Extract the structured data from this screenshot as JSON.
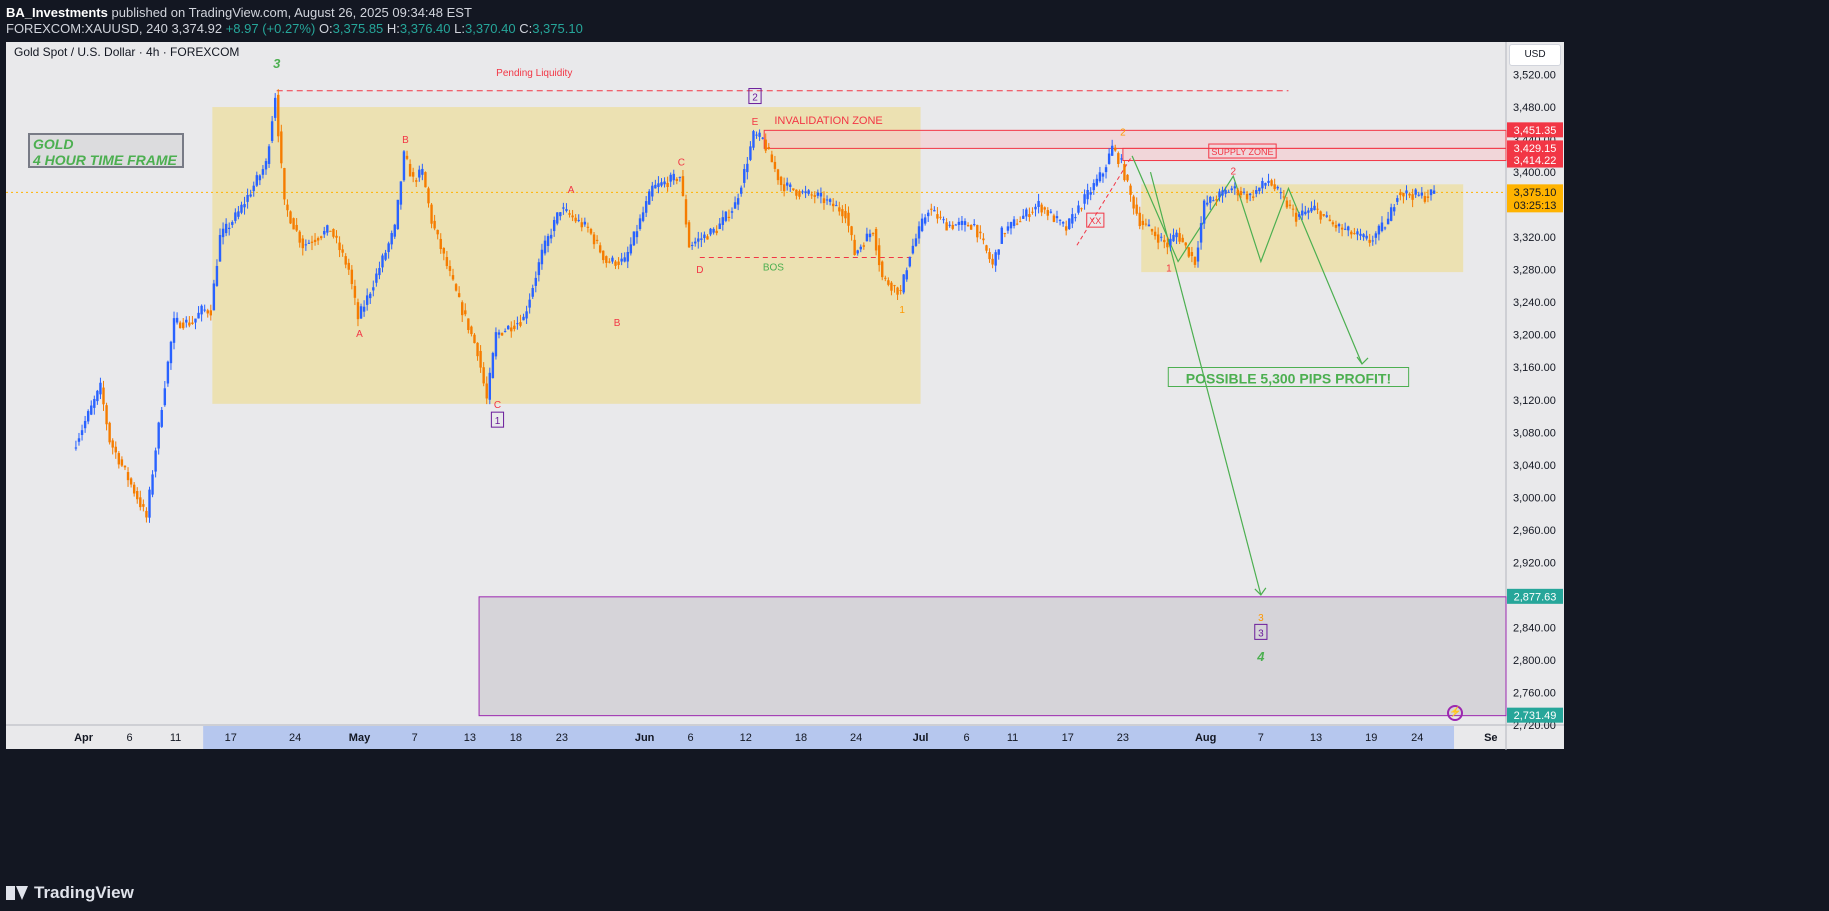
{
  "header": {
    "author": "BA_Investments",
    "published": "published on TradingView.com, August 26, 2025 09:34:48 EST",
    "symbol_line": "FOREXCOM:XAUUSD, 240",
    "last": "3,374.92",
    "change": "+8.97 (+0.27%)",
    "o_label": "O:",
    "o": "3,375.85",
    "h_label": "H:",
    "h": "3,376.40",
    "l_label": "L:",
    "l": "3,370.40",
    "c_label": "C:",
    "c": "3,375.10"
  },
  "chart_title": "Gold Spot / U.S. Dollar · 4h · FOREXCOM",
  "currency": "USD",
  "footer": {
    "brand": "TradingView"
  },
  "colors": {
    "bg": "#e9e9eb",
    "up": "#2962ff",
    "down": "#f57c00",
    "zone": "#ecdfa8",
    "red": "#f23645",
    "green": "#4caf50"
  },
  "chart_data": {
    "type": "line",
    "ylim": [
      2720,
      3560
    ],
    "y_ticks": [
      {
        "v": 3520,
        "label": "3,520.00"
      },
      {
        "v": 3480,
        "label": "3,480.00"
      },
      {
        "v": 3440,
        "label": "3,440.00"
      },
      {
        "v": 3400,
        "label": "3,400.00"
      },
      {
        "v": 3360,
        "label": "3,360.00"
      },
      {
        "v": 3320,
        "label": "3,320.00"
      },
      {
        "v": 3280,
        "label": "3,280.00"
      },
      {
        "v": 3240,
        "label": "3,240.00"
      },
      {
        "v": 3200,
        "label": "3,200.00"
      },
      {
        "v": 3160,
        "label": "3,160.00"
      },
      {
        "v": 3120,
        "label": "3,120.00"
      },
      {
        "v": 3080,
        "label": "3,080.00"
      },
      {
        "v": 3040,
        "label": "3,040.00"
      },
      {
        "v": 3000,
        "label": "3,000.00"
      },
      {
        "v": 2960,
        "label": "2,960.00"
      },
      {
        "v": 2920,
        "label": "2,920.00"
      },
      {
        "v": 2880,
        "label": "2,880.00"
      },
      {
        "v": 2840,
        "label": "2,840.00"
      },
      {
        "v": 2800,
        "label": "2,800.00"
      },
      {
        "v": 2760,
        "label": "2,760.00"
      },
      {
        "v": 2720,
        "label": "2,720.00"
      }
    ],
    "price_tags": [
      {
        "v": 3451.35,
        "label": "3,451.35",
        "color": "#f23645"
      },
      {
        "v": 3429.15,
        "label": "3,429.15",
        "color": "#f23645"
      },
      {
        "v": 3414.22,
        "label": "3,414.22",
        "color": "#f23645"
      },
      {
        "v": 3375.1,
        "label": "3,375.10",
        "color": "#ffb300",
        "sub": "03:25:13"
      },
      {
        "v": 2877.63,
        "label": "2,877.63",
        "color": "#26a69a"
      },
      {
        "v": 2731.49,
        "label": "2,731.49",
        "color": "#26a69a"
      }
    ],
    "x_ticks": [
      {
        "d": "2025-04-01",
        "label": "Apr",
        "bold": true
      },
      {
        "d": "2025-04-06",
        "label": "6"
      },
      {
        "d": "2025-04-11",
        "label": "11"
      },
      {
        "d": "2025-04-17",
        "label": "17"
      },
      {
        "d": "2025-04-24",
        "label": "24"
      },
      {
        "d": "2025-05-01",
        "label": "May",
        "bold": true
      },
      {
        "d": "2025-05-07",
        "label": "7"
      },
      {
        "d": "2025-05-13",
        "label": "13"
      },
      {
        "d": "2025-05-18",
        "label": "18"
      },
      {
        "d": "2025-05-23",
        "label": "23"
      },
      {
        "d": "2025-06-01",
        "label": "Jun",
        "bold": true
      },
      {
        "d": "2025-06-06",
        "label": "6"
      },
      {
        "d": "2025-06-12",
        "label": "12"
      },
      {
        "d": "2025-06-18",
        "label": "18"
      },
      {
        "d": "2025-06-24",
        "label": "24"
      },
      {
        "d": "2025-07-01",
        "label": "Jul",
        "bold": true
      },
      {
        "d": "2025-07-06",
        "label": "6"
      },
      {
        "d": "2025-07-11",
        "label": "11"
      },
      {
        "d": "2025-07-17",
        "label": "17"
      },
      {
        "d": "2025-07-23",
        "label": "23"
      },
      {
        "d": "2025-08-01",
        "label": "Aug",
        "bold": true
      },
      {
        "d": "2025-08-07",
        "label": "7"
      },
      {
        "d": "2025-08-13",
        "label": "13"
      },
      {
        "d": "2025-08-19",
        "label": "19"
      },
      {
        "d": "2025-08-24",
        "label": "24"
      },
      {
        "d": "2025-09-01",
        "label": "Se",
        "bold": true
      }
    ],
    "price_path": [
      [
        "2025-03-31",
        3060
      ],
      [
        "2025-04-03",
        3135
      ],
      [
        "2025-04-04",
        3070
      ],
      [
        "2025-04-07",
        3000
      ],
      [
        "2025-04-08",
        2975
      ],
      [
        "2025-04-09",
        3060
      ],
      [
        "2025-04-10",
        3140
      ],
      [
        "2025-04-11",
        3215
      ],
      [
        "2025-04-13",
        3215
      ],
      [
        "2025-04-14",
        3230
      ],
      [
        "2025-04-15",
        3230
      ],
      [
        "2025-04-16",
        3320
      ],
      [
        "2025-04-18",
        3350
      ],
      [
        "2025-04-21",
        3410
      ],
      [
        "2025-04-22",
        3495
      ],
      [
        "2025-04-23",
        3360
      ],
      [
        "2025-04-25",
        3310
      ],
      [
        "2025-04-28",
        3330
      ],
      [
        "2025-04-30",
        3280
      ],
      [
        "2025-05-01",
        3220
      ],
      [
        "2025-05-02",
        3245
      ],
      [
        "2025-05-05",
        3330
      ],
      [
        "2025-05-06",
        3420
      ],
      [
        "2025-05-07",
        3390
      ],
      [
        "2025-05-08",
        3400
      ],
      [
        "2025-05-09",
        3340
      ],
      [
        "2025-05-12",
        3240
      ],
      [
        "2025-05-14",
        3180
      ],
      [
        "2025-05-15",
        3120
      ],
      [
        "2025-05-16",
        3200
      ],
      [
        "2025-05-19",
        3220
      ],
      [
        "2025-05-21",
        3300
      ],
      [
        "2025-05-23",
        3355
      ],
      [
        "2025-05-26",
        3330
      ],
      [
        "2025-05-28",
        3290
      ],
      [
        "2025-05-30",
        3290
      ],
      [
        "2025-06-02",
        3380
      ],
      [
        "2025-06-05",
        3395
      ],
      [
        "2025-06-06",
        3310
      ],
      [
        "2025-06-09",
        3330
      ],
      [
        "2025-06-11",
        3360
      ],
      [
        "2025-06-12",
        3400
      ],
      [
        "2025-06-13",
        3445
      ],
      [
        "2025-06-14",
        3440
      ],
      [
        "2025-06-16",
        3385
      ],
      [
        "2025-06-18",
        3375
      ],
      [
        "2025-06-20",
        3370
      ],
      [
        "2025-06-23",
        3350
      ],
      [
        "2025-06-24",
        3300
      ],
      [
        "2025-06-26",
        3330
      ],
      [
        "2025-06-27",
        3270
      ],
      [
        "2025-06-29",
        3252
      ],
      [
        "2025-06-30",
        3300
      ],
      [
        "2025-07-02",
        3355
      ],
      [
        "2025-07-04",
        3335
      ],
      [
        "2025-07-07",
        3335
      ],
      [
        "2025-07-09",
        3285
      ],
      [
        "2025-07-10",
        3325
      ],
      [
        "2025-07-14",
        3360
      ],
      [
        "2025-07-16",
        3340
      ],
      [
        "2025-07-17",
        3330
      ],
      [
        "2025-07-18",
        3350
      ],
      [
        "2025-07-21",
        3400
      ],
      [
        "2025-07-22",
        3430
      ],
      [
        "2025-07-23",
        3410
      ],
      [
        "2025-07-24",
        3370
      ],
      [
        "2025-07-25",
        3340
      ],
      [
        "2025-07-28",
        3310
      ],
      [
        "2025-07-29",
        3325
      ],
      [
        "2025-07-31",
        3290
      ],
      [
        "2025-08-01",
        3360
      ],
      [
        "2025-08-04",
        3380
      ],
      [
        "2025-08-06",
        3370
      ],
      [
        "2025-08-08",
        3390
      ],
      [
        "2025-08-11",
        3345
      ],
      [
        "2025-08-13",
        3355
      ],
      [
        "2025-08-15",
        3335
      ],
      [
        "2025-08-19",
        3315
      ],
      [
        "2025-08-21",
        3340
      ],
      [
        "2025-08-22",
        3375
      ],
      [
        "2025-08-25",
        3370
      ],
      [
        "2025-08-26",
        3375
      ]
    ],
    "annotations": [
      {
        "text": "Pending Liquidity",
        "x": "2025-05-20",
        "y": 3518,
        "color": "#f23645",
        "size": 10
      },
      {
        "text": "INVALIDATION ZONE",
        "x": "2025-06-21",
        "y": 3459,
        "color": "#f23645",
        "size": 11
      },
      {
        "text": "SUPPLY ZONE",
        "x": "2025-08-05",
        "y": 3421,
        "color": "#f23645",
        "size": 9,
        "boxed": true
      },
      {
        "text": "BOS",
        "x": "2025-06-15",
        "y": 3279,
        "color": "#4caf50",
        "size": 10
      },
      {
        "text": "POSSIBLE 5,300 PIPS PROFIT!",
        "x": "2025-08-10",
        "y": 3140,
        "color": "#4caf50",
        "size": 14,
        "boxed": true,
        "bold": true
      },
      {
        "text": "3",
        "x": "2025-04-22",
        "y": 3528,
        "color": "#4caf50",
        "size": 13,
        "italic": true,
        "bold": true
      },
      {
        "text": "2",
        "x": "2025-06-13",
        "y": 3488,
        "color": "#6a1b9a",
        "size": 10,
        "boxed": true
      },
      {
        "text": "E",
        "x": "2025-06-13",
        "y": 3458,
        "color": "#f23645",
        "size": 10
      },
      {
        "text": "B",
        "x": "2025-05-06",
        "y": 3436,
        "color": "#f23645",
        "size": 10
      },
      {
        "text": "A",
        "x": "2025-05-01",
        "y": 3197,
        "color": "#f23645",
        "size": 10
      },
      {
        "text": "A",
        "x": "2025-05-24",
        "y": 3374,
        "color": "#f23645",
        "size": 10
      },
      {
        "text": "C",
        "x": "2025-06-05",
        "y": 3408,
        "color": "#f23645",
        "size": 10
      },
      {
        "text": "B",
        "x": "2025-05-29",
        "y": 3211,
        "color": "#f23645",
        "size": 10
      },
      {
        "text": "D",
        "x": "2025-06-07",
        "y": 3276,
        "color": "#f23645",
        "size": 10
      },
      {
        "text": "C",
        "x": "2025-05-16",
        "y": 3110,
        "color": "#f23645",
        "size": 10
      },
      {
        "text": "1",
        "x": "2025-05-16",
        "y": 3090,
        "color": "#6a1b9a",
        "size": 10,
        "boxed": true
      },
      {
        "text": "1",
        "x": "2025-06-29",
        "y": 3227,
        "color": "#ff9800",
        "size": 10
      },
      {
        "text": "2",
        "x": "2025-07-23",
        "y": 3445,
        "color": "#ff9800",
        "size": 10
      },
      {
        "text": "XX",
        "x": "2025-07-20",
        "y": 3336,
        "color": "#f23645",
        "size": 9,
        "boxed": true
      },
      {
        "text": "1",
        "x": "2025-07-28",
        "y": 3278,
        "color": "#f23645",
        "size": 10
      },
      {
        "text": "2",
        "x": "2025-08-04",
        "y": 3397,
        "color": "#f23645",
        "size": 10
      },
      {
        "text": "3",
        "x": "2025-08-07",
        "y": 2848,
        "color": "#ff9800",
        "size": 10
      },
      {
        "text": "3",
        "x": "2025-08-07",
        "y": 2829,
        "color": "#6a1b9a",
        "size": 10,
        "boxed": true
      },
      {
        "text": "4",
        "x": "2025-08-07",
        "y": 2799,
        "color": "#4caf50",
        "size": 13,
        "italic": true,
        "bold": true
      }
    ]
  },
  "labels": {
    "gold_line1": "GOLD",
    "gold_line2": "4 HOUR TIME FRAME"
  }
}
